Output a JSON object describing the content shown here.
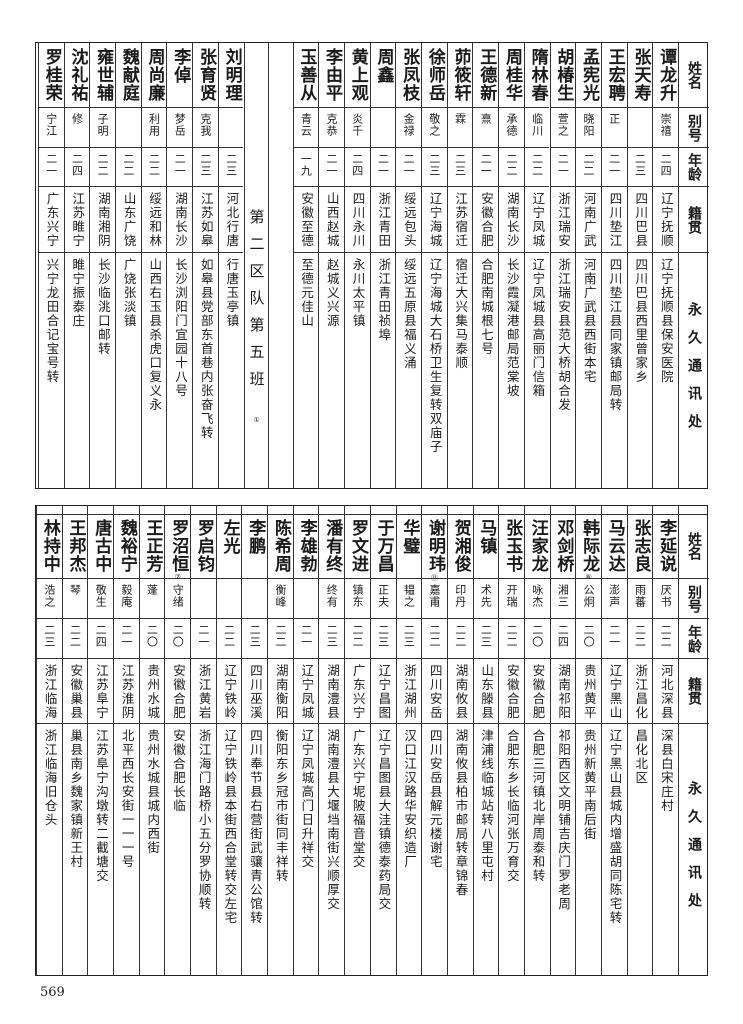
{
  "header": {
    "name": "姓名",
    "alias": "别号",
    "age": "年龄",
    "origin": "籍贯",
    "address": "永久通讯处"
  },
  "top_rows": [
    {
      "name": "谭龙升",
      "alias": "崇禧",
      "age": "二四",
      "origin": "辽宁抚顺",
      "address": "辽宁抚顺县保安医院"
    },
    {
      "name": "张天寿",
      "alias": "",
      "age": "二三",
      "origin": "四川巴县",
      "address": "四川巴县西里曾家乡"
    },
    {
      "name": "王宏聘",
      "alias": "正",
      "age": "二一",
      "origin": "四川垫江",
      "address": "四川垫江县同家镇邮局转"
    },
    {
      "name": "孟宪光",
      "alias": "晓阳",
      "age": "二二",
      "origin": "河南广武",
      "address": "河南广武县西街本宅"
    },
    {
      "name": "胡椿生",
      "alias": "萱之",
      "age": "二一",
      "origin": "浙江瑞安",
      "address": "浙江瑞安县范大桥胡合发"
    },
    {
      "name": "隋林春",
      "alias": "临川",
      "age": "二二",
      "origin": "辽宁凤城",
      "address": "辽宁凤城县高丽门信箱"
    },
    {
      "name": "周桂华",
      "alias": "承德",
      "age": "二二",
      "origin": "湖南长沙",
      "address": "长沙霞凝港邮局范棠坡"
    },
    {
      "name": "王德新",
      "alias": "熹",
      "age": "二一",
      "origin": "安徽合肥",
      "address": "合肥南城根七号"
    },
    {
      "name": "茆筱轩",
      "alias": "霖",
      "age": "二三",
      "origin": "江苏宿迁",
      "address": "宿迁大兴集马泰顺"
    },
    {
      "name": "徐师岳",
      "alias": "敬之",
      "age": "二三",
      "origin": "辽宁海城",
      "address": "辽宁海城大石桥卫生复转双庙子"
    },
    {
      "name": "张凤枝",
      "alias": "金禄",
      "age": "二一",
      "origin": "绥远包头",
      "address": "绥远五原县福义涌"
    },
    {
      "name": "周鑫",
      "alias": "",
      "age": "二一",
      "origin": "浙江青田",
      "address": "浙江青田祯埠"
    },
    {
      "name": "黄上观",
      "alias": "炎千",
      "age": "二四",
      "origin": "四川永川",
      "address": "永川太平镇"
    },
    {
      "name": "李由平",
      "alias": "克恭",
      "age": "二一",
      "origin": "山西赵城",
      "address": "赵城义兴源"
    },
    {
      "name": "玉善从",
      "alias": "青云",
      "age": "一九",
      "origin": "安徽至德",
      "address": "至德元佳山"
    }
  ],
  "section": {
    "title": "第二区队第五班",
    "note": "①"
  },
  "left_rows": [
    {
      "name": "刘明理",
      "alias": "",
      "age": "二三",
      "origin": "河北行唐",
      "address": "行唐玉亭镇"
    },
    {
      "name": "张育贤",
      "alias": "克我",
      "age": "二三",
      "origin": "江苏如皋",
      "address": "如皋县党部东首巷内张奋飞转"
    },
    {
      "name": "李倬",
      "alias": "梦岳",
      "age": "二一",
      "origin": "湖南长沙",
      "address": "长沙浏阳门宜园十八号"
    },
    {
      "name": "周尚廉",
      "alias": "利用",
      "age": "二二",
      "origin": "绥远和林",
      "address": "山西右玉县杀虎口复义永"
    },
    {
      "name": "魏献庭",
      "alias": "",
      "age": "二二",
      "origin": "山东广饶",
      "address": "广饶张淡镇"
    },
    {
      "name": "雍世辅",
      "alias": "子明",
      "age": "二二",
      "origin": "湖南湘阴",
      "address": "长沙临洮口邮转"
    },
    {
      "name": "沈礼祐",
      "alias": "修",
      "age": "二四",
      "origin": "江苏睢宁",
      "address": "睢宁振泰庄"
    },
    {
      "name": "罗桂荣",
      "alias": "宁江",
      "age": "二一",
      "origin": "广东兴宁",
      "address": "兴宁龙田合记宝号转"
    }
  ],
  "bottom_rows": [
    {
      "name": "李延说",
      "alias": "厌书",
      "age": "二二",
      "origin": "河北深县",
      "address": "深县白宋庄村"
    },
    {
      "name": "张志良",
      "alias": "雨蕃",
      "age": "二二",
      "origin": "浙江昌化",
      "address": "昌化北区"
    },
    {
      "name": "马云达",
      "alias": "澎声",
      "age": "二一",
      "origin": "辽宁黑山",
      "address": "辽宁黑山县城内增盛胡同陈宅转"
    },
    {
      "name": "韩际龙",
      "note": "⑥",
      "alias": "公炯",
      "age": "二〇",
      "origin": "贵州黄平",
      "address": "贵州新黄平南后街"
    },
    {
      "name": "邓剑桥",
      "alias": "湘三",
      "age": "二四",
      "origin": "湖南祁阳",
      "address": "祁阳西区文明铺吉庆门罗老周"
    },
    {
      "name": "汪家龙",
      "alias": "咏杰",
      "age": "二〇",
      "origin": "安徽合肥",
      "address": "合肥三河镇北岸周泰和转"
    },
    {
      "name": "张玉书",
      "alias": "开瑞",
      "age": "二二",
      "origin": "安徽合肥",
      "address": "合肥东乡长临河张万育交"
    },
    {
      "name": "马镇",
      "alias": "术先",
      "age": "二三",
      "origin": "山东滕县",
      "address": "津浦线临城站转八里屯村"
    },
    {
      "name": "贺湘俊",
      "alias": "印丹",
      "age": "二二",
      "origin": "湖南攸县",
      "address": "湖南攸县柏市邮局转章锦春"
    },
    {
      "name": "谢明玮",
      "note": "⑪",
      "alias": "嘉甫",
      "age": "二二",
      "origin": "四川安岳",
      "address": "四川安岳县解元楼谢宅"
    },
    {
      "name": "华璧",
      "alias": "韫之",
      "age": "二三",
      "origin": "浙江湖州",
      "address": "汉口江汉路华安织造厂"
    },
    {
      "name": "于万昌",
      "alias": "正夫",
      "age": "二三",
      "origin": "辽宁昌图",
      "address": "辽宁昌图县大洼镇德泰药局交"
    },
    {
      "name": "罗文进",
      "alias": "镇东",
      "age": "二二",
      "origin": "广东兴宁",
      "address": "广东兴宁坭陂福音堂交"
    },
    {
      "name": "潘有终",
      "alias": "终有",
      "age": "二三",
      "origin": "湖南澧县",
      "address": "湖南澧县大堰垱南街兴顺厚交"
    },
    {
      "name": "李雄勃",
      "alias": "",
      "age": "二一",
      "origin": "辽宁凤城",
      "address": "辽宁凤城高门日升祥交"
    },
    {
      "name": "陈希周",
      "alias": "衡峰",
      "age": "二二",
      "origin": "湖南衡阳",
      "address": "衡阳东乡冠市街同丰祥转"
    },
    {
      "name": "李鹏",
      "alias": "",
      "age": "二三",
      "origin": "四川巫溪",
      "address": "四川奉节县右营街武骧青公馆转"
    },
    {
      "name": "左光",
      "alias": "",
      "age": "二二",
      "origin": "辽宁铁岭",
      "address": "辽宁铁岭县本街西合堂转交左宅"
    },
    {
      "name": "罗启钧",
      "alias": "",
      "age": "二一",
      "origin": "浙江黄岩",
      "address": "浙江海门路桥小五分罗协顺转"
    },
    {
      "name": "罗沼恒",
      "note": "⑦",
      "alias": "守绪",
      "age": "二〇",
      "origin": "安徽合肥",
      "address": "安徽合肥长临"
    },
    {
      "name": "王正芳",
      "alias": "蓬",
      "age": "二〇",
      "origin": "贵州水城",
      "address": "贵州水城县城内西街"
    },
    {
      "name": "魏裕宁",
      "alias": "毅庵",
      "age": "二一",
      "origin": "江苏淮阴",
      "address": "北平西长安街一一一号"
    },
    {
      "name": "唐古中",
      "alias": "敬生",
      "age": "二四",
      "origin": "江苏阜宁",
      "address": "江苏阜宁沟墩转二截塘交"
    },
    {
      "name": "王邦杰",
      "alias": "琴",
      "age": "二二",
      "origin": "安徽巢县",
      "address": "巢县南乡魏家镇新王村"
    },
    {
      "name": "林持中",
      "alias": "浩之",
      "age": "二三",
      "origin": "浙江临海",
      "address": "浙江临海旧仓头"
    }
  ],
  "page_number": "569"
}
